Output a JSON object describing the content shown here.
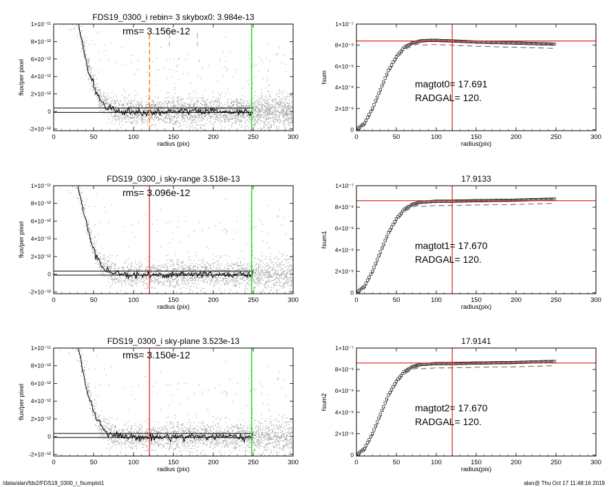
{
  "footer": {
    "left": "/data/alan/fds2/FDS19_0300_i_fsumplot1",
    "right": "alan@  Thu Oct 17 11:48:16 2019"
  },
  "colors": {
    "scatter": "#9a9a9a",
    "profile": "#000000",
    "red_marker": "#e03030",
    "green_marker": "#22dd22",
    "orange_marker": "#ff8c00",
    "fsum_points": "#000000"
  },
  "chart_data": [
    {
      "id": "profile1",
      "type": "scatter",
      "title": "FDS19_0300_i rebin= 3    skybox0:  3.984e-13",
      "annotation": "rms= 3.156e-12",
      "xlabel": "radius (pix)",
      "ylabel": "flux/per pixel",
      "xlim": [
        0,
        300
      ],
      "ylim": [
        -2.2e-12,
        1e-11
      ],
      "x_ticks": [
        0,
        50,
        100,
        150,
        200,
        250,
        300
      ],
      "y_ticks": [
        "1×10⁻¹¹",
        "8×10⁻¹²",
        "6×10⁻¹²",
        "4×10⁻¹²",
        "2×10⁻¹²",
        "0",
        "-2×10⁻¹²"
      ],
      "y_tick_values": [
        1e-11,
        8e-12,
        6e-12,
        4e-12,
        2e-12,
        0,
        -2e-12
      ],
      "profile_radius": [
        0,
        30,
        35,
        40,
        45,
        50,
        55,
        60,
        65,
        70,
        80,
        90,
        100,
        120,
        150,
        200,
        250
      ],
      "profile_flux": [
        1.2e-11,
        1.05e-11,
        8.2e-12,
        6e-12,
        4.2e-12,
        2.9e-12,
        1.9e-12,
        1.2e-12,
        7e-13,
        4e-13,
        1e-13,
        0,
        -1e-13,
        -1e-13,
        0,
        0,
        -1e-13
      ],
      "sky_lines": [
        4e-13,
        -1e-13
      ],
      "vertical_markers": [
        {
          "x": 120,
          "style": "orange-dashed"
        },
        {
          "x": 145,
          "style": "gray-dashed"
        },
        {
          "x": 180,
          "style": "gray-dashed"
        },
        {
          "x": 248,
          "style": "green"
        }
      ],
      "grid": false
    },
    {
      "id": "fsum0",
      "type": "scatter",
      "title": "",
      "xlabel": "radius(pix)",
      "ylabel": "fsum",
      "xlim": [
        0,
        300
      ],
      "ylim": [
        -1e-09,
        1e-07
      ],
      "x_ticks": [
        0,
        50,
        100,
        150,
        200,
        250,
        300
      ],
      "y_ticks": [
        "1×10⁻⁷",
        "8×10⁻⁸",
        "6×10⁻⁸",
        "4×10⁻⁸",
        "2×10⁻⁸",
        "0"
      ],
      "y_tick_values": [
        1e-07,
        8e-08,
        6e-08,
        4e-08,
        2e-08,
        0
      ],
      "curve_radius": [
        0,
        10,
        20,
        30,
        40,
        50,
        60,
        70,
        80,
        90,
        100,
        120,
        150,
        200,
        248
      ],
      "curve_fsum": [
        0,
        6e-09,
        2e-08,
        3.8e-08,
        5.6e-08,
        6.9e-08,
        7.8e-08,
        8.2e-08,
        8.4e-08,
        8.45e-08,
        8.45e-08,
        8.4e-08,
        8.3e-08,
        8.2e-08,
        8.1e-08
      ],
      "dashed_offset": -2.5e-09,
      "hline": 8.4e-08,
      "vline": 120,
      "annotations": [
        "magtot0=  17.691",
        "RADGAL=    120."
      ],
      "grid": false
    },
    {
      "id": "profile2",
      "type": "scatter",
      "title": "FDS19_0300_i sky-range  3.518e-13",
      "annotation": "rms= 3.096e-12",
      "xlabel": "radius (pix)",
      "ylabel": "flux/per pixel",
      "xlim": [
        0,
        300
      ],
      "ylim": [
        -2.2e-12,
        1e-11
      ],
      "x_ticks": [
        0,
        50,
        100,
        150,
        200,
        250,
        300
      ],
      "y_ticks": [
        "1×10⁻¹¹",
        "8×10⁻¹²",
        "6×10⁻¹²",
        "4×10⁻¹²",
        "2×10⁻¹²",
        "0",
        "-2×10⁻¹²"
      ],
      "y_tick_values": [
        1e-11,
        8e-12,
        6e-12,
        4e-12,
        2e-12,
        0,
        -2e-12
      ],
      "profile_radius": [
        0,
        30,
        35,
        40,
        45,
        50,
        55,
        60,
        65,
        70,
        80,
        90,
        100,
        120,
        150,
        200,
        250
      ],
      "profile_flux": [
        1.2e-11,
        1.05e-11,
        8.2e-12,
        6e-12,
        4.2e-12,
        2.9e-12,
        1.9e-12,
        1.2e-12,
        7e-13,
        4e-13,
        1e-13,
        0,
        -1e-13,
        -1e-13,
        0,
        0,
        -1e-13
      ],
      "sky_lines": [
        3.5e-13,
        -1e-13
      ],
      "vertical_markers": [
        {
          "x": 120,
          "style": "red"
        },
        {
          "x": 248,
          "style": "green"
        }
      ],
      "grid": false
    },
    {
      "id": "fsum1",
      "type": "scatter",
      "title": "17.9133",
      "xlabel": "radius(pix)",
      "ylabel": "fsum1",
      "xlim": [
        0,
        300
      ],
      "ylim": [
        -1e-09,
        1e-07
      ],
      "x_ticks": [
        0,
        50,
        100,
        150,
        200,
        250,
        300
      ],
      "y_ticks": [
        "1×10⁻⁷",
        "8×10⁻⁸",
        "6×10⁻⁸",
        "4×10⁻⁸",
        "2×10⁻⁸",
        "0"
      ],
      "y_tick_values": [
        1e-07,
        8e-08,
        6e-08,
        4e-08,
        2e-08,
        0
      ],
      "curve_radius": [
        0,
        10,
        20,
        30,
        40,
        50,
        60,
        70,
        80,
        90,
        100,
        120,
        150,
        200,
        248
      ],
      "curve_fsum": [
        0,
        6e-09,
        2e-08,
        3.8e-08,
        5.6e-08,
        6.9e-08,
        7.8e-08,
        8.25e-08,
        8.45e-08,
        8.5e-08,
        8.55e-08,
        8.55e-08,
        8.6e-08,
        8.65e-08,
        8.75e-08
      ],
      "dashed_offset": -2.5e-09,
      "hline": 8.6e-08,
      "vline": 120,
      "annotations": [
        "magtot1=  17.670",
        "RADGAL=    120."
      ],
      "grid": false
    },
    {
      "id": "profile3",
      "type": "scatter",
      "title": "FDS19_0300_i sky-plane  3.523e-13",
      "annotation": "rms= 3.150e-12",
      "xlabel": "radius (pix)",
      "ylabel": "flux/per pixel",
      "xlim": [
        0,
        300
      ],
      "ylim": [
        -2.2e-12,
        1e-11
      ],
      "x_ticks": [
        0,
        50,
        100,
        150,
        200,
        250,
        300
      ],
      "y_ticks": [
        "1×10⁻¹¹",
        "8×10⁻¹²",
        "6×10⁻¹²",
        "4×10⁻¹²",
        "2×10⁻¹²",
        "0",
        "-2×10⁻¹²"
      ],
      "y_tick_values": [
        1e-11,
        8e-12,
        6e-12,
        4e-12,
        2e-12,
        0,
        -2e-12
      ],
      "profile_radius": [
        0,
        30,
        35,
        40,
        45,
        50,
        55,
        60,
        65,
        70,
        80,
        90,
        100,
        120,
        150,
        200,
        250
      ],
      "profile_flux": [
        1.2e-11,
        1.05e-11,
        8.2e-12,
        6e-12,
        4.2e-12,
        2.9e-12,
        1.9e-12,
        1.2e-12,
        7e-13,
        4e-13,
        1e-13,
        0,
        -1e-13,
        -1e-13,
        0,
        0,
        -1e-13
      ],
      "sky_lines": [
        3.5e-13,
        -1e-13
      ],
      "vertical_markers": [
        {
          "x": 120,
          "style": "red"
        },
        {
          "x": 248,
          "style": "green"
        }
      ],
      "grid": false
    },
    {
      "id": "fsum2",
      "type": "scatter",
      "title": "17.9141",
      "xlabel": "radius(pix)",
      "ylabel": "fsum2",
      "xlim": [
        0,
        300
      ],
      "ylim": [
        -1e-09,
        1e-07
      ],
      "x_ticks": [
        0,
        50,
        100,
        150,
        200,
        250,
        300
      ],
      "y_ticks": [
        "1×10⁻⁷",
        "8×10⁻⁸",
        "6×10⁻⁸",
        "4×10⁻⁸",
        "2×10⁻⁸",
        "0"
      ],
      "y_tick_values": [
        1e-07,
        8e-08,
        6e-08,
        4e-08,
        2e-08,
        0
      ],
      "curve_radius": [
        0,
        10,
        20,
        30,
        40,
        50,
        60,
        70,
        80,
        90,
        100,
        120,
        150,
        200,
        248
      ],
      "curve_fsum": [
        0,
        6e-09,
        2e-08,
        3.8e-08,
        5.6e-08,
        6.9e-08,
        7.8e-08,
        8.25e-08,
        8.45e-08,
        8.5e-08,
        8.55e-08,
        8.55e-08,
        8.6e-08,
        8.65e-08,
        8.75e-08
      ],
      "dashed_offset": -2.5e-09,
      "hline": 8.6e-08,
      "vline": 120,
      "annotations": [
        "magtot2=  17.670",
        "RADGAL=    120."
      ],
      "grid": false
    }
  ]
}
